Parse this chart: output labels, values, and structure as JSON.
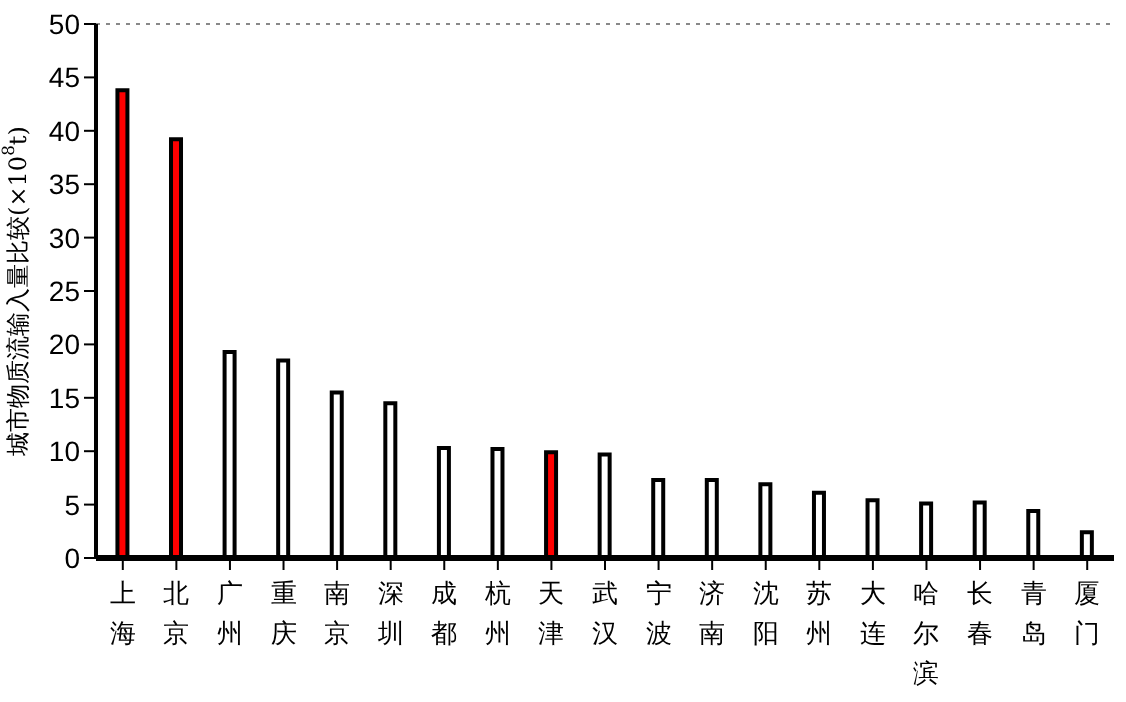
{
  "chart_data": {
    "type": "bar",
    "ylabel": "城市物质流输入量比较(×10$^{8}$t)",
    "categories": [
      "上海",
      "北京",
      "广州",
      "重庆",
      "南京",
      "深圳",
      "成都",
      "杭州",
      "天津",
      "武汉",
      "宁波",
      "济南",
      "沈阳",
      "苏州",
      "大连",
      "哈尔滨",
      "长春",
      "青岛",
      "厦门"
    ],
    "values": [
      43.8,
      39.2,
      19.3,
      18.5,
      15.5,
      14.5,
      10.3,
      10.2,
      9.9,
      9.7,
      7.3,
      7.3,
      6.9,
      6.1,
      5.4,
      5.1,
      5.2,
      4.4,
      2.4
    ],
    "colors": [
      "#ff0000",
      "#ff0000",
      "#ffffff",
      "#ffffff",
      "#ffffff",
      "#ffffff",
      "#ffffff",
      "#ffffff",
      "#ff0000",
      "#ffffff",
      "#ffffff",
      "#ffffff",
      "#ffffff",
      "#ffffff",
      "#ffffff",
      "#ffffff",
      "#ffffff",
      "#ffffff",
      "#ffffff"
    ],
    "ylim": [
      0,
      50
    ],
    "yticks": [
      0,
      5,
      10,
      15,
      20,
      25,
      30,
      35,
      40,
      45,
      50
    ],
    "grid": false
  }
}
